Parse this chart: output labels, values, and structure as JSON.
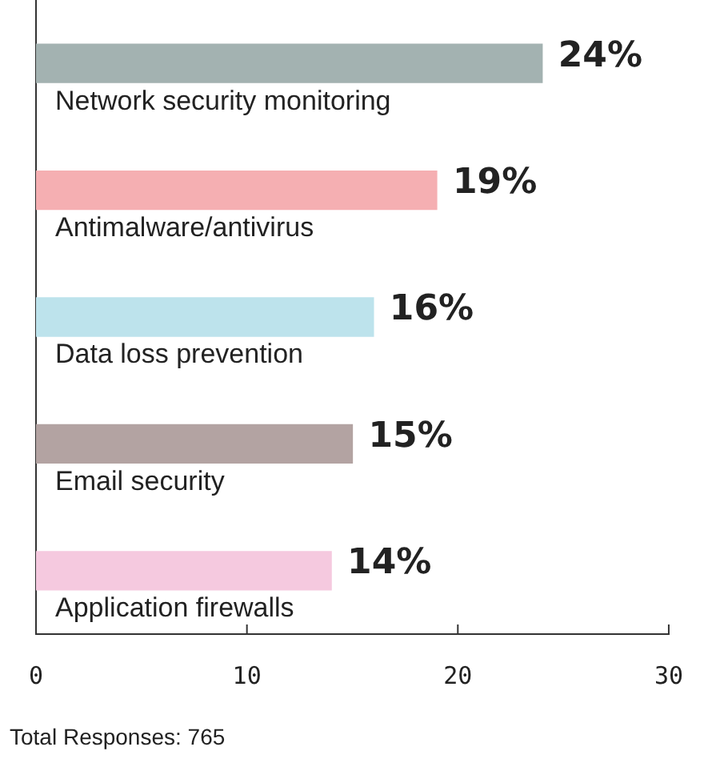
{
  "chart_data": {
    "type": "bar",
    "orientation": "horizontal",
    "categories": [
      "Network security monitoring",
      "Antimalware/antivirus",
      "Data loss prevention",
      "Email security",
      "Application firewalls"
    ],
    "values": [
      24,
      19,
      16,
      15,
      14
    ],
    "colors": [
      "#a3b2b1",
      "#f5afb2",
      "#bde3ec",
      "#b3a3a2",
      "#f5c9df"
    ],
    "value_labels": [
      "24%",
      "19%",
      "16%",
      "15%",
      "14%"
    ],
    "xlim": [
      0,
      30
    ],
    "xticks": [
      0,
      10,
      20,
      30
    ],
    "grid": false,
    "legend": false,
    "annotations": [
      "Total Responses: 765"
    ]
  }
}
